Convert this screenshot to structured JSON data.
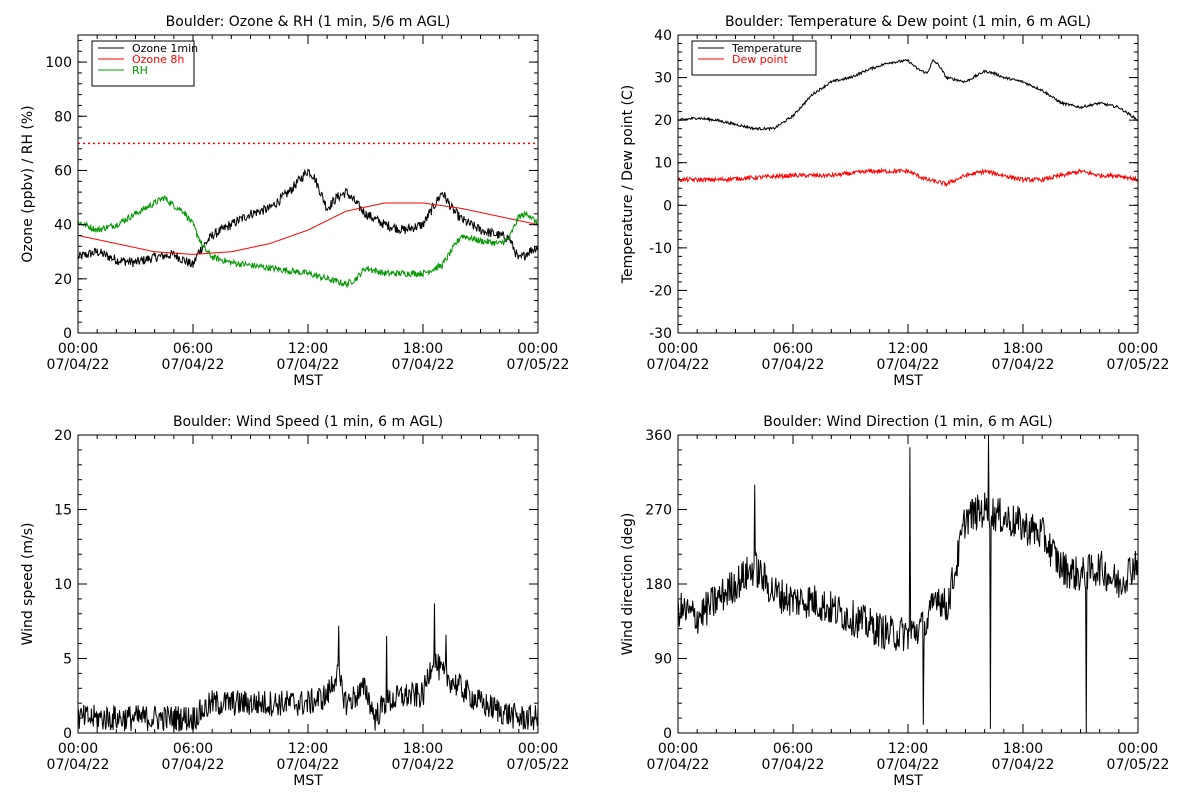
{
  "x_axis": {
    "ticks": [
      {
        "time": "00:00",
        "date": "07/04/22"
      },
      {
        "time": "06:00",
        "date": "07/04/22"
      },
      {
        "time": "12:00",
        "date": "07/04/22"
      },
      {
        "time": "18:00",
        "date": "07/04/22"
      },
      {
        "time": "00:00",
        "date": "07/05/22"
      }
    ],
    "label": "MST"
  },
  "chart_data": [
    {
      "type": "line",
      "title": "Boulder: Ozone & RH (1 min, 5/6 m AGL)",
      "ylabel": "Ozone (ppbv) / RH (%)",
      "xlabel": "MST",
      "xlim_hours": [
        0,
        24
      ],
      "ylim": [
        0,
        110
      ],
      "yticks": [
        0,
        20,
        40,
        60,
        80,
        100
      ],
      "legend_position": "top-left",
      "reference_lines": [
        {
          "y": 70,
          "style": "dotted",
          "color": "#ff0000"
        }
      ],
      "series": [
        {
          "name": "Ozone 1min",
          "color": "#000000",
          "noise": 1.8,
          "x_hours": [
            0,
            1,
            2,
            3,
            4,
            5,
            5.5,
            6,
            6.3,
            7,
            8,
            9,
            10,
            11,
            11.5,
            12,
            12.3,
            13,
            13.5,
            14,
            14.5,
            15,
            16,
            17,
            18,
            18.5,
            19,
            19.5,
            20,
            21,
            22,
            22.5,
            23,
            23.5,
            24
          ],
          "y": [
            28,
            30,
            27,
            26,
            28,
            29,
            27,
            25,
            30,
            36,
            40,
            44,
            46,
            52,
            56,
            60,
            58,
            46,
            50,
            52,
            48,
            44,
            40,
            38,
            40,
            46,
            52,
            46,
            42,
            38,
            36,
            35,
            27,
            30,
            32
          ]
        },
        {
          "name": "Ozone 8h",
          "color": "#ff0000",
          "noise": 0,
          "x_hours": [
            0,
            2,
            4,
            6,
            8,
            10,
            12,
            14,
            16,
            18,
            20,
            22,
            24
          ],
          "y": [
            36,
            33,
            30,
            29,
            30,
            33,
            38,
            45,
            48,
            48,
            46,
            43,
            40
          ]
        },
        {
          "name": "RH",
          "color": "#009900",
          "noise": 1.2,
          "x_hours": [
            0,
            1,
            2,
            3,
            4,
            4.5,
            5,
            5.5,
            6,
            6.5,
            7,
            8,
            9,
            10,
            11,
            12,
            13,
            14,
            14.5,
            15,
            16,
            17,
            18,
            19,
            20,
            21,
            22,
            22.5,
            23,
            23.5,
            24
          ],
          "y": [
            41,
            38,
            40,
            44,
            48,
            50,
            47,
            45,
            40,
            32,
            28,
            26,
            25,
            24,
            23,
            22,
            20,
            18,
            20,
            24,
            22,
            22,
            22,
            25,
            36,
            34,
            33,
            35,
            43,
            44,
            40
          ]
        }
      ]
    },
    {
      "type": "line",
      "title": "Boulder: Temperature & Dew point (1 min, 6 m AGL)",
      "ylabel": "Temperature / Dew point (C)",
      "xlabel": "MST",
      "xlim_hours": [
        0,
        24
      ],
      "ylim": [
        -30,
        40
      ],
      "yticks": [
        -30,
        -20,
        -10,
        0,
        10,
        20,
        30,
        40
      ],
      "legend_position": "top-left",
      "series": [
        {
          "name": "Temperature",
          "color": "#000000",
          "noise": 0.3,
          "x_hours": [
            0,
            1,
            2,
            3,
            4,
            5,
            6,
            7,
            8,
            9,
            10,
            11,
            12,
            12.5,
            13,
            13.3,
            13.6,
            14,
            15,
            16,
            16.5,
            17,
            18,
            19,
            20,
            21,
            22,
            23,
            24
          ],
          "y": [
            20,
            20.5,
            20,
            19,
            18,
            18,
            21,
            26,
            29,
            30,
            32,
            33.5,
            34,
            32,
            31,
            34,
            33,
            30,
            29,
            31.5,
            31,
            30,
            29,
            27,
            24,
            23,
            24,
            23,
            20
          ]
        },
        {
          "name": "Dew point",
          "color": "#ff0000",
          "noise": 0.5,
          "x_hours": [
            0,
            2,
            4,
            6,
            8,
            10,
            12,
            13,
            14,
            15,
            16,
            17,
            18,
            19,
            20,
            21,
            22,
            23,
            24
          ],
          "y": [
            6,
            6,
            6.5,
            7,
            7,
            8,
            8,
            6,
            5,
            7,
            8,
            7,
            6,
            6,
            7,
            8,
            7,
            7,
            6
          ]
        }
      ]
    },
    {
      "type": "line",
      "title": "Boulder: Wind Speed (1 min, 6 m AGL)",
      "ylabel": "Wind speed (m/s)",
      "xlabel": "MST",
      "xlim_hours": [
        0,
        24
      ],
      "ylim": [
        0,
        20
      ],
      "yticks": [
        0,
        5,
        10,
        15,
        20
      ],
      "series": [
        {
          "name": "Wind speed",
          "color": "#000000",
          "noise": 0.9,
          "x_hours": [
            0,
            2,
            4,
            6,
            7,
            8,
            10,
            12,
            13,
            13.5,
            14,
            15,
            15.5,
            16,
            17,
            18,
            18.5,
            19,
            20,
            21,
            22,
            23,
            24
          ],
          "y": [
            1,
            1,
            1,
            1,
            2,
            2,
            2,
            2,
            2.5,
            4,
            2,
            3,
            1,
            2,
            2.5,
            2.5,
            5,
            4,
            3,
            2,
            1.5,
            1,
            1
          ],
          "spikes_hours": [
            13.6,
            16.1,
            18.6,
            19.2
          ],
          "spikes_values": [
            7.2,
            6.5,
            8.7,
            6.6
          ]
        }
      ]
    },
    {
      "type": "line",
      "title": "Boulder: Wind Direction (1 min, 6 m AGL)",
      "ylabel": "Wind direction (deg)",
      "xlabel": "MST",
      "xlim_hours": [
        0,
        24
      ],
      "ylim": [
        0,
        360
      ],
      "yticks": [
        0,
        90,
        180,
        270,
        360
      ],
      "series": [
        {
          "name": "Wind direction",
          "color": "#000000",
          "noise": 22,
          "x_hours": [
            0,
            1,
            2,
            3,
            4,
            5,
            6,
            7,
            8,
            9,
            10,
            11,
            12,
            13,
            13.5,
            14,
            14.5,
            15,
            16,
            17,
            18,
            19,
            20,
            21,
            22,
            23,
            24
          ],
          "y": [
            150,
            140,
            160,
            180,
            200,
            170,
            160,
            160,
            150,
            140,
            130,
            120,
            120,
            130,
            170,
            150,
            200,
            260,
            270,
            260,
            250,
            240,
            200,
            190,
            200,
            180,
            210
          ],
          "spikes_hours": [
            4.0,
            12.1,
            12.8,
            16.2,
            16.3,
            21.3
          ],
          "spikes_values": [
            300,
            345,
            10,
            360,
            5,
            0
          ]
        }
      ]
    }
  ]
}
